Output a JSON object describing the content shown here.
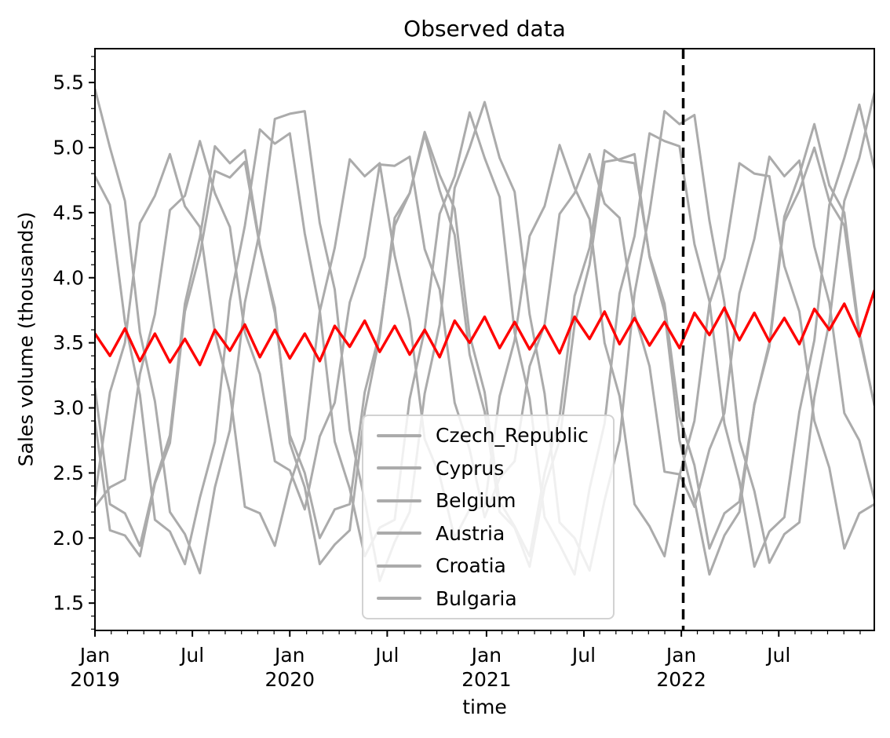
{
  "chart": {
    "title": "Observed data",
    "xlabel": "time",
    "ylabel": "Sales volume (thousands)",
    "colors": {
      "gray_series": "#ababab",
      "red_series": "#ff0000",
      "axis": "#000000",
      "cutoff": "#000000",
      "legend_border": "#d2d2d2"
    }
  },
  "chart_data": {
    "type": "line",
    "title": "Observed data",
    "xlabel": "time",
    "ylabel": "Sales volume (thousands)",
    "x_unit": "weeks since Jan 2019",
    "x_step_weeks": 4,
    "xlim": [
      0,
      208
    ],
    "ylim": [
      1.29,
      5.76
    ],
    "grid": false,
    "legend_position": "lower center",
    "y_ticks": [
      1.5,
      2.0,
      2.5,
      3.0,
      3.5,
      4.0,
      4.5,
      5.0,
      5.5
    ],
    "x_ticks": [
      {
        "week": 0,
        "month": "Jan",
        "year": "2019"
      },
      {
        "week": 26,
        "month": "Jul",
        "year": ""
      },
      {
        "week": 52,
        "month": "Jan",
        "year": "2020"
      },
      {
        "week": 78,
        "month": "Jul",
        "year": ""
      },
      {
        "week": 104.5,
        "month": "Jan",
        "year": "2021"
      },
      {
        "week": 130.5,
        "month": "Jul",
        "year": ""
      },
      {
        "week": 156.5,
        "month": "Jan",
        "year": "2022"
      },
      {
        "week": 182.5,
        "month": "Jul",
        "year": ""
      }
    ],
    "cutoff_line": {
      "week": 157,
      "at": "Jan 2022",
      "style": "dashed",
      "color": "#000000"
    },
    "series": [
      {
        "name": "Czech_Republic",
        "color": "#ababab",
        "in_legend": true,
        "highlight": false,
        "values": [
          5.45,
          5.0,
          4.59,
          3.58,
          3.05,
          2.2,
          2.03,
          1.73,
          2.39,
          2.83,
          3.81,
          4.36,
          5.22,
          5.26,
          5.28,
          4.42,
          3.91,
          2.83,
          2.29,
          1.67,
          1.97,
          2.2,
          3.11,
          3.64,
          4.69,
          5.0,
          5.35,
          4.92,
          4.66,
          3.72,
          3.11,
          2.12,
          2.0,
          1.75,
          2.29,
          2.75,
          3.88,
          4.5,
          5.28,
          5.18,
          5.25,
          4.44,
          3.81,
          2.75,
          2.36,
          1.81,
          2.03,
          2.12,
          3.08,
          3.66,
          4.59,
          4.92,
          5.42
        ]
      },
      {
        "name": "Cyprus",
        "color": "#ababab",
        "in_legend": true,
        "highlight": false,
        "values": [
          4.78,
          4.56,
          3.66,
          3.1,
          2.14,
          2.05,
          1.8,
          2.31,
          2.74,
          3.82,
          4.4,
          5.14,
          5.03,
          5.11,
          4.34,
          3.75,
          2.74,
          2.38,
          1.86,
          2.08,
          2.14,
          3.07,
          3.6,
          4.49,
          4.78,
          5.27,
          4.92,
          4.62,
          3.58,
          3.07,
          2.16,
          1.95,
          1.72,
          2.38,
          2.88,
          3.88,
          4.32,
          5.11,
          5.05,
          5.01,
          4.26,
          3.82,
          2.88,
          2.44,
          1.78,
          2.05,
          2.16,
          2.97,
          3.52,
          4.56,
          4.92,
          5.33,
          4.84
        ]
      },
      {
        "name": "Belgium",
        "color": "#ababab",
        "in_legend": true,
        "highlight": false,
        "values": [
          2.32,
          3.12,
          3.5,
          4.42,
          4.63,
          4.95,
          4.55,
          4.39,
          3.58,
          3.12,
          2.24,
          2.19,
          1.94,
          2.41,
          2.76,
          3.74,
          4.23,
          4.91,
          4.78,
          4.88,
          4.17,
          3.67,
          2.76,
          2.48,
          2.0,
          2.22,
          2.24,
          3.09,
          3.52,
          4.32,
          4.55,
          5.02,
          4.69,
          4.45,
          3.5,
          3.09,
          2.26,
          2.09,
          1.86,
          2.48,
          2.9,
          3.8,
          4.15,
          4.88,
          4.8,
          4.78,
          4.09,
          3.74,
          2.9,
          2.54,
          1.92,
          2.19,
          2.26
        ]
      },
      {
        "name": "Austria",
        "color": "#ababab",
        "in_legend": true,
        "highlight": false,
        "values": [
          2.24,
          2.39,
          2.45,
          3.26,
          3.72,
          4.52,
          4.63,
          5.05,
          4.65,
          4.39,
          3.58,
          3.26,
          2.59,
          2.52,
          2.22,
          2.78,
          3.04,
          3.81,
          4.16,
          4.87,
          4.86,
          4.93,
          4.22,
          3.91,
          3.04,
          2.68,
          2.16,
          2.46,
          2.59,
          3.32,
          3.64,
          4.49,
          4.65,
          4.95,
          4.57,
          4.46,
          3.72,
          3.32,
          2.51,
          2.49,
          2.24,
          2.68,
          2.96,
          3.88,
          4.3,
          4.93,
          4.78,
          4.9,
          4.24,
          3.81,
          2.96,
          2.75,
          2.3
        ]
      },
      {
        "name": "Croatia",
        "color": "#ababab",
        "in_legend": true,
        "highlight": false,
        "values": [
          3.15,
          2.26,
          2.19,
          1.94,
          2.43,
          2.79,
          3.8,
          4.31,
          5.01,
          4.88,
          4.98,
          4.25,
          3.73,
          2.79,
          2.5,
          2.0,
          2.22,
          2.26,
          3.12,
          3.58,
          4.4,
          4.65,
          5.12,
          4.79,
          4.53,
          3.56,
          3.12,
          2.28,
          2.09,
          1.86,
          2.5,
          2.93,
          3.86,
          4.23,
          4.98,
          4.9,
          4.88,
          4.17,
          3.8,
          2.93,
          2.56,
          1.92,
          2.19,
          2.28,
          3.02,
          3.5,
          4.47,
          4.79,
          5.18,
          4.71,
          4.5,
          3.58,
          3.02
        ]
      },
      {
        "name": "Bulgaria",
        "color": "#ababab",
        "in_legend": true,
        "highlight": false,
        "values": [
          2.9,
          2.06,
          2.02,
          1.86,
          2.42,
          2.73,
          3.74,
          4.18,
          4.82,
          4.77,
          4.89,
          4.24,
          3.77,
          2.73,
          2.39,
          1.8,
          1.95,
          2.06,
          2.97,
          3.55,
          4.46,
          4.65,
          5.1,
          4.67,
          4.33,
          3.41,
          2.97,
          2.2,
          2.08,
          1.78,
          2.39,
          2.75,
          3.64,
          4.1,
          4.89,
          4.91,
          4.95,
          4.16,
          3.74,
          2.75,
          2.29,
          1.72,
          2.02,
          2.2,
          3.03,
          3.47,
          4.43,
          4.67,
          5.0,
          4.59,
          4.4,
          3.55,
          3.03
        ]
      },
      {
        "name": null,
        "color": "#ff0000",
        "in_legend": false,
        "highlight": true,
        "values": [
          3.57,
          3.4,
          3.61,
          3.36,
          3.57,
          3.35,
          3.53,
          3.33,
          3.6,
          3.44,
          3.64,
          3.39,
          3.6,
          3.38,
          3.57,
          3.36,
          3.63,
          3.47,
          3.67,
          3.43,
          3.63,
          3.41,
          3.6,
          3.39,
          3.67,
          3.5,
          3.7,
          3.46,
          3.66,
          3.45,
          3.63,
          3.42,
          3.7,
          3.53,
          3.74,
          3.49,
          3.69,
          3.48,
          3.66,
          3.46,
          3.73,
          3.56,
          3.77,
          3.52,
          3.73,
          3.51,
          3.69,
          3.49,
          3.76,
          3.6,
          3.8,
          3.55,
          3.9
        ]
      }
    ]
  }
}
